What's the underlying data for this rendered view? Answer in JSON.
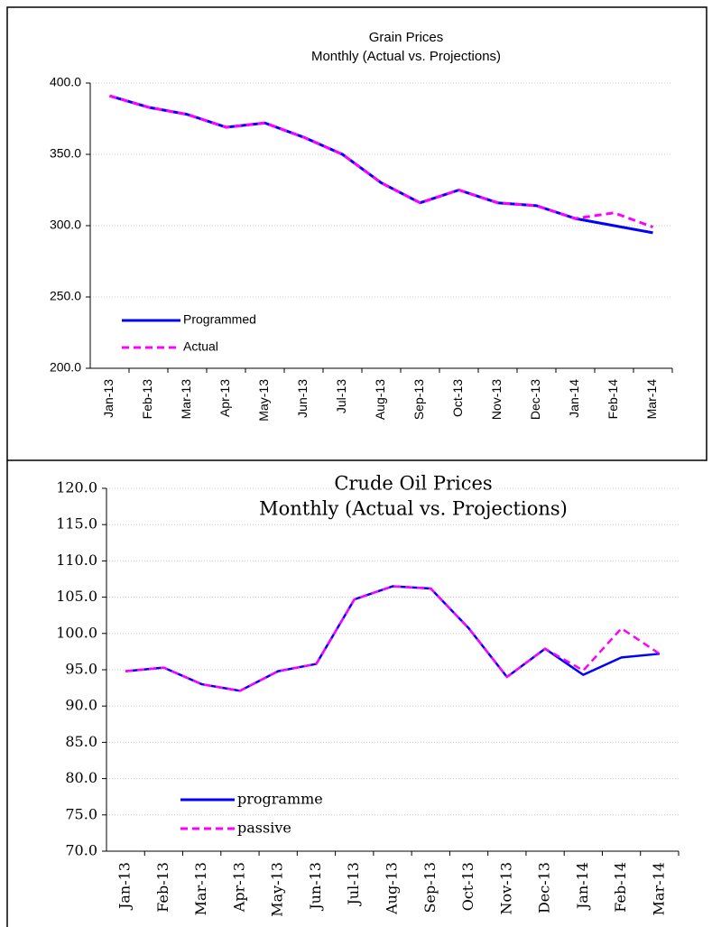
{
  "chart_data": [
    {
      "type": "line",
      "title": "Grain Prices",
      "subtitle": "Monthly (Actual vs. Projections)",
      "categories": [
        "Jan-13",
        "Feb-13",
        "Mar-13",
        "Apr-13",
        "May-13",
        "Jun-13",
        "Jul-13",
        "Aug-13",
        "Sep-13",
        "Oct-13",
        "Nov-13",
        "Dec-13",
        "Jan-14",
        "Feb-14",
        "Mar-14"
      ],
      "series": [
        {
          "name": "Programmed",
          "color": "#0000ff",
          "dashed": false,
          "values": [
            391,
            383,
            378,
            369,
            372,
            362,
            350,
            330,
            316,
            325,
            316,
            314,
            305,
            300,
            295
          ]
        },
        {
          "name": "Actual",
          "color": "#ff00ff",
          "dashed": true,
          "values": [
            391,
            383,
            378,
            369,
            372,
            362,
            350,
            330,
            316,
            325,
            316,
            314,
            305,
            309,
            299
          ]
        }
      ],
      "ylim": [
        200,
        400
      ],
      "yticks": [
        {
          "value": 200,
          "label": "200.0"
        },
        {
          "value": 250,
          "label": "250.0"
        },
        {
          "value": 300,
          "label": "300.0"
        },
        {
          "value": 350,
          "label": "350.0"
        },
        {
          "value": 400,
          "label": "400.0"
        }
      ],
      "grid": true
    },
    {
      "type": "line",
      "title": "Crude Oil Prices",
      "subtitle": "Monthly (Actual vs. Projections)",
      "categories": [
        "Jan-13",
        "Feb-13",
        "Mar-13",
        "Apr-13",
        "May-13",
        "Jun-13",
        "Jul-13",
        "Aug-13",
        "Sep-13",
        "Oct-13",
        "Nov-13",
        "Dec-13",
        "Jan-14",
        "Feb-14",
        "Mar-14"
      ],
      "series": [
        {
          "name": "programme",
          "color": "#0000ff",
          "dashed": false,
          "values": [
            94.8,
            95.3,
            93.0,
            92.1,
            94.8,
            95.8,
            104.7,
            106.5,
            106.2,
            100.7,
            94.0,
            97.9,
            94.3,
            96.7,
            97.2
          ]
        },
        {
          "name": "passive",
          "color": "#ff00ff",
          "dashed": true,
          "values": [
            94.8,
            95.3,
            93.0,
            92.1,
            94.8,
            95.8,
            104.7,
            106.5,
            106.2,
            100.7,
            94.0,
            97.9,
            94.9,
            100.7,
            97.2
          ]
        }
      ],
      "ylim": [
        70,
        120
      ],
      "yticks": [
        {
          "value": 70,
          "label": "70.0"
        },
        {
          "value": 75,
          "label": "75.0"
        },
        {
          "value": 80,
          "label": "80.0"
        },
        {
          "value": 85,
          "label": "85.0"
        },
        {
          "value": 90,
          "label": "90.0"
        },
        {
          "value": 95,
          "label": "95.0"
        },
        {
          "value": 100,
          "label": "100.0"
        },
        {
          "value": 105,
          "label": "105.0"
        },
        {
          "value": 110,
          "label": "110.0"
        },
        {
          "value": 115,
          "label": "115.0"
        },
        {
          "value": 120,
          "label": "120.0"
        }
      ],
      "grid": true
    }
  ]
}
